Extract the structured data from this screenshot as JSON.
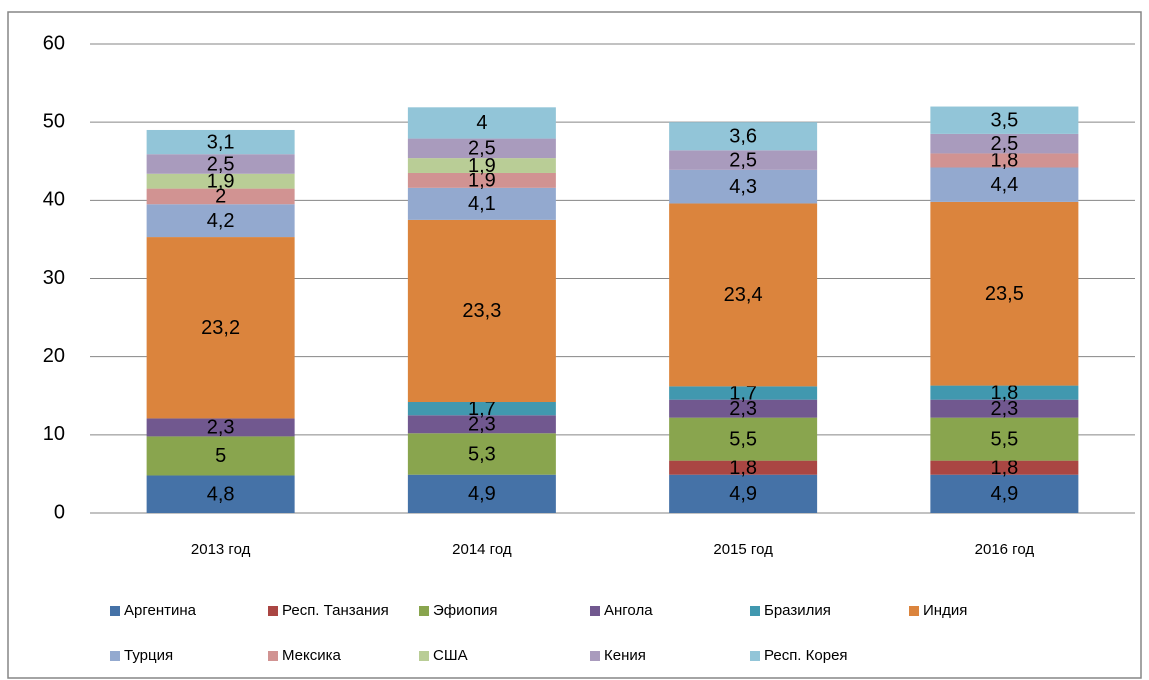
{
  "chart_data": {
    "type": "bar",
    "stacked": true,
    "categories": [
      "2013 год",
      "2014 год",
      "2015 год",
      "2016 год"
    ],
    "ylim": [
      0,
      60
    ],
    "yticks": [
      0,
      10,
      20,
      30,
      40,
      50,
      60
    ],
    "grid": true,
    "legend": "bottom",
    "series": [
      {
        "name": "Аргентина",
        "color": "#4572a7",
        "values": [
          4.8,
          4.9,
          4.9,
          4.9
        ],
        "value_labels": [
          "4,8",
          "4,9",
          "4,9",
          "4,9"
        ]
      },
      {
        "name": "Респ. Танзания",
        "color": "#aa4643",
        "values": [
          null,
          null,
          1.8,
          1.8
        ],
        "value_labels": [
          null,
          null,
          "1,8",
          "1,8"
        ]
      },
      {
        "name": "Эфиопия",
        "color": "#89a54e",
        "values": [
          5,
          5.3,
          5.5,
          5.5
        ],
        "value_labels": [
          "5",
          "5,3",
          "5,5",
          "5,5"
        ]
      },
      {
        "name": "Ангола",
        "color": "#71588f",
        "values": [
          2.3,
          2.3,
          2.3,
          2.3
        ],
        "value_labels": [
          "2,3",
          "2,3",
          "2,3",
          "2,3"
        ]
      },
      {
        "name": "Бразилия",
        "color": "#4198af",
        "values": [
          null,
          1.7,
          1.7,
          1.8
        ],
        "value_labels": [
          null,
          "1,7",
          "1,7",
          "1,8"
        ]
      },
      {
        "name": "Индия",
        "color": "#db843d",
        "values": [
          23.2,
          23.3,
          23.4,
          23.5
        ],
        "value_labels": [
          "23,2",
          "23,3",
          "23,4",
          "23,5"
        ]
      },
      {
        "name": "Турция",
        "color": "#93a9cf",
        "values": [
          4.2,
          4.1,
          4.3,
          4.4
        ],
        "value_labels": [
          "4,2",
          "4,1",
          "4,3",
          "4,4"
        ]
      },
      {
        "name": "Мексика",
        "color": "#d19392",
        "values": [
          2,
          1.9,
          null,
          1.8
        ],
        "value_labels": [
          "2",
          "1,9",
          null,
          "1,8"
        ]
      },
      {
        "name": "США",
        "color": "#b9cd96",
        "values": [
          1.9,
          1.9,
          null,
          null
        ],
        "value_labels": [
          "1,9",
          "1,9",
          null,
          null
        ]
      },
      {
        "name": "Кения",
        "color": "#a99bbd",
        "values": [
          2.5,
          2.5,
          2.5,
          2.5
        ],
        "value_labels": [
          "2,5",
          "2,5",
          "2,5",
          "2,5"
        ]
      },
      {
        "name": "Респ. Корея",
        "color": "#92c5d8",
        "values": [
          3.1,
          4,
          3.6,
          3.5
        ],
        "value_labels": [
          "3,1",
          "4",
          "3,6",
          "3,5"
        ]
      }
    ]
  }
}
